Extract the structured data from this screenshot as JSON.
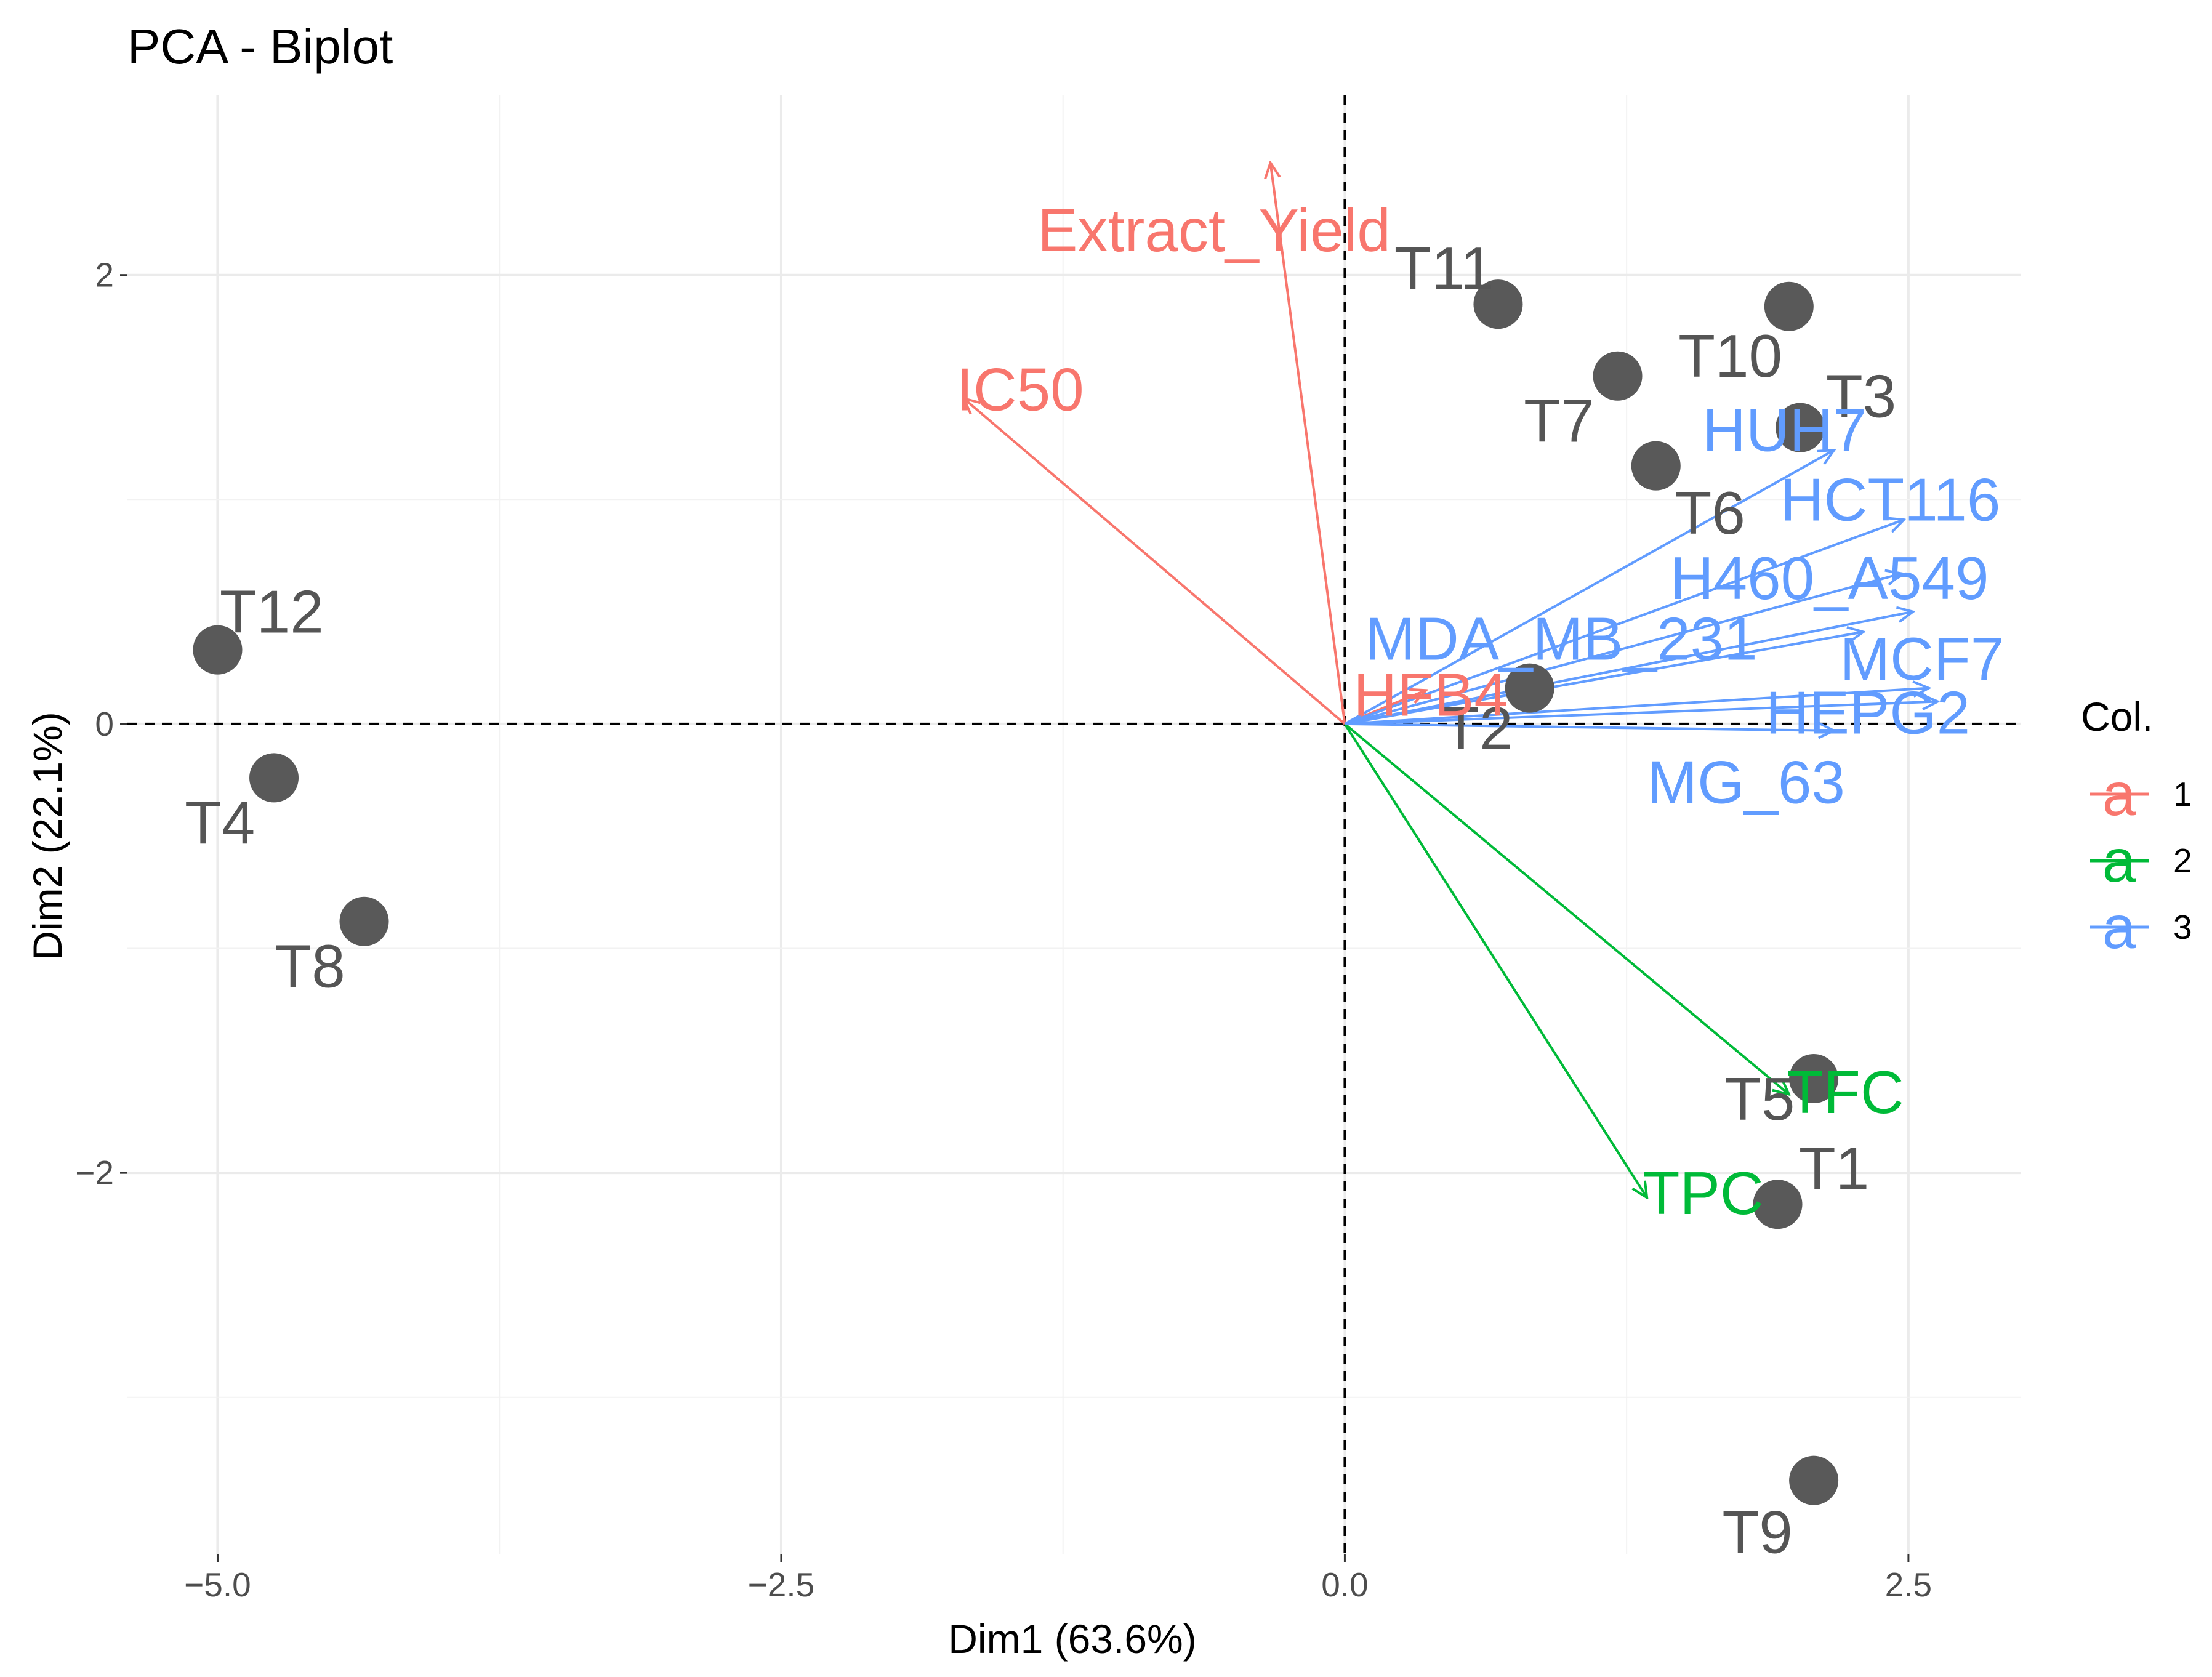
{
  "chart_data": {
    "type": "scatter",
    "title": "PCA - Biplot",
    "xlabel": "Dim1 (63.6%)",
    "ylabel": "Dim2 (22.1%)",
    "xlim": [
      -5.4,
      3.0
    ],
    "ylim": [
      -3.7,
      2.8
    ],
    "x_ticks": [
      {
        "value": -5.0,
        "label": "−5.0"
      },
      {
        "value": -2.5,
        "label": "−2.5"
      },
      {
        "value": 0.0,
        "label": "0.0"
      },
      {
        "value": 2.5,
        "label": "2.5"
      }
    ],
    "y_ticks": [
      {
        "value": -2,
        "label": "−2"
      },
      {
        "value": 0,
        "label": "0"
      },
      {
        "value": 2,
        "label": "2"
      }
    ],
    "grid": true,
    "reference_lines": {
      "x": 0,
      "y": 0,
      "style": "dashed"
    },
    "points": [
      {
        "label": "T1",
        "x": 1.92,
        "y": -2.14
      },
      {
        "label": "T2",
        "x": 0.82,
        "y": 0.16
      },
      {
        "label": "T3",
        "x": 2.02,
        "y": 1.32
      },
      {
        "label": "T4",
        "x": -4.75,
        "y": -0.24
      },
      {
        "label": "T5",
        "x": 2.08,
        "y": -1.58
      },
      {
        "label": "T6",
        "x": 1.38,
        "y": 1.15
      },
      {
        "label": "T7",
        "x": 1.21,
        "y": 1.55
      },
      {
        "label": "T8",
        "x": -4.35,
        "y": -0.88
      },
      {
        "label": "T9",
        "x": 2.08,
        "y": -3.37
      },
      {
        "label": "T10",
        "x": 1.97,
        "y": 1.86
      },
      {
        "label": "T11",
        "x": 0.68,
        "y": 1.87
      },
      {
        "label": "T12",
        "x": -5.0,
        "y": 0.33
      }
    ],
    "variables": [
      {
        "name": "Extract_Yield",
        "group": "1",
        "x": -0.33,
        "y": 2.5
      },
      {
        "name": "IC50",
        "group": "1",
        "x": -1.69,
        "y": 1.45
      },
      {
        "name": "HFB4",
        "group": "1",
        "x": 0.36,
        "y": 0.15
      },
      {
        "name": "TFC",
        "group": "2",
        "x": 1.97,
        "y": -1.65
      },
      {
        "name": "TPC",
        "group": "2",
        "x": 1.34,
        "y": -2.11
      },
      {
        "name": "HUH7",
        "group": "3",
        "x": 2.17,
        "y": 1.22
      },
      {
        "name": "HCT116",
        "group": "3",
        "x": 2.48,
        "y": 0.91
      },
      {
        "name": "H460",
        "group": "3",
        "x": 2.47,
        "y": 0.67
      },
      {
        "name": "A549",
        "group": "3",
        "x": 2.52,
        "y": 0.5
      },
      {
        "name": "MDA_MB_231",
        "group": "3",
        "x": 2.3,
        "y": 0.41
      },
      {
        "name": "MCF7",
        "group": "3",
        "x": 2.59,
        "y": 0.16
      },
      {
        "name": "HEPG2",
        "group": "3",
        "x": 2.63,
        "y": 0.1
      },
      {
        "name": "MG_63",
        "group": "3",
        "x": 2.17,
        "y": -0.03
      }
    ],
    "variable_labels": [
      {
        "text": "Extract_Yield",
        "group": "1",
        "x": -0.58,
        "y": 2.2
      },
      {
        "text": "IC50",
        "group": "1",
        "x": -1.44,
        "y": 1.49
      },
      {
        "text": "HFB4",
        "group": "1",
        "x": 0.38,
        "y": 0.13
      },
      {
        "text": "TFC",
        "group": "2",
        "x": 2.22,
        "y": -1.64
      },
      {
        "text": "TPC",
        "group": "2",
        "x": 1.59,
        "y": -2.09
      },
      {
        "text": "HUH7",
        "group": "3",
        "x": 1.95,
        "y": 1.31
      },
      {
        "text": "HCT116",
        "group": "3",
        "x": 2.42,
        "y": 1.0
      },
      {
        "text": "H460_A549",
        "group": "3",
        "x": 2.15,
        "y": 0.65
      },
      {
        "text": "MDA_MB_231",
        "group": "3",
        "x": 0.96,
        "y": 0.38
      },
      {
        "text": "MCF7",
        "group": "3",
        "x": 2.56,
        "y": 0.29
      },
      {
        "text": "HEPG2",
        "group": "3",
        "x": 2.32,
        "y": 0.05
      },
      {
        "text": "MG_63",
        "group": "3",
        "x": 1.78,
        "y": -0.26
      }
    ],
    "point_labels": [
      {
        "text": "T1",
        "x": 2.17,
        "y": -1.98
      },
      {
        "text": "T2",
        "x": 0.59,
        "y": -0.02
      },
      {
        "text": "T3",
        "x": 2.29,
        "y": 1.46
      },
      {
        "text": "T4",
        "x": -4.99,
        "y": -0.44
      },
      {
        "text": "T5",
        "x": 1.84,
        "y": -1.67
      },
      {
        "text": "T6",
        "x": 1.62,
        "y": 0.94
      },
      {
        "text": "T7",
        "x": 0.95,
        "y": 1.35
      },
      {
        "text": "T8",
        "x": -4.59,
        "y": -1.08
      },
      {
        "text": "T9",
        "x": 1.83,
        "y": -3.6
      },
      {
        "text": "T10",
        "x": 1.71,
        "y": 1.64
      },
      {
        "text": "T11",
        "x": 0.44,
        "y": 2.03
      },
      {
        "text": "T12",
        "x": -4.76,
        "y": 0.5
      }
    ],
    "legend": {
      "title": "Col.",
      "position": "right",
      "key_text": "a",
      "items": [
        {
          "label": "1",
          "color": "#f8766d"
        },
        {
          "label": "2",
          "color": "#00ba38"
        },
        {
          "label": "3",
          "color": "#619cff"
        }
      ]
    },
    "colors": {
      "1": "#f8766d",
      "2": "#00ba38",
      "3": "#619cff",
      "points": "#595959"
    }
  }
}
